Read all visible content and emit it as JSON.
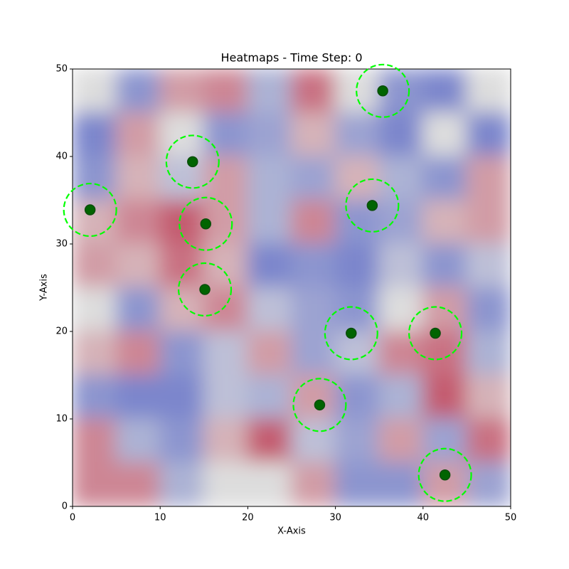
{
  "chart_data": {
    "type": "heatmap",
    "title": "Heatmaps - Time Step: 0",
    "x_label": "X-Axis",
    "y_label": "Y-Axis",
    "xlim": [
      0,
      50
    ],
    "ylim": [
      0,
      50
    ],
    "xticks": [
      0,
      10,
      20,
      30,
      40,
      50
    ],
    "yticks": [
      0,
      10,
      20,
      30,
      40,
      50
    ],
    "colormap": [
      "#3b4cc0",
      "#dddddd",
      "#b40426"
    ],
    "vlim": [
      -1,
      1
    ],
    "matrix": [
      [
        0,
        -0.5,
        0.3,
        0.4,
        -0.3,
        0.5,
        0,
        -0.5,
        -0.6,
        0
      ],
      [
        -0.6,
        0.3,
        0,
        -0.5,
        -0.4,
        0.2,
        -0.4,
        -0.6,
        0,
        -0.6
      ],
      [
        -0.5,
        0.2,
        -0.2,
        0.3,
        -0.3,
        -0.4,
        0.2,
        -0.3,
        -0.5,
        0.3
      ],
      [
        0.2,
        0.4,
        0.6,
        0.3,
        -0.3,
        0.4,
        -0.5,
        -0.4,
        0.2,
        0.3
      ],
      [
        0.3,
        0.2,
        0.5,
        0.2,
        -0.6,
        -0.5,
        -0.6,
        -0.2,
        -0.5,
        -0.2
      ],
      [
        0,
        -0.5,
        0.2,
        0.4,
        -0.2,
        -0.4,
        -0.5,
        0,
        0.3,
        -0.5
      ],
      [
        0.2,
        0.4,
        -0.5,
        -0.2,
        0.3,
        -0.4,
        -0.2,
        0.4,
        0.5,
        -0.3
      ],
      [
        -0.5,
        -0.6,
        -0.6,
        -0.2,
        -0.3,
        0.3,
        -0.5,
        -0.3,
        0.6,
        0.2
      ],
      [
        0.4,
        -0.3,
        -0.5,
        0.2,
        0.6,
        -0.2,
        -0.4,
        0.3,
        -0.4,
        0.5
      ],
      [
        0.4,
        0.4,
        -0.3,
        0,
        0,
        0.3,
        -0.5,
        -0.5,
        0.3,
        -0.4
      ]
    ],
    "points": {
      "color": "#006400",
      "ring_color": "#00ff00",
      "circle_radius": 3,
      "x": [
        2,
        13.7,
        15.2,
        15.1,
        35.4,
        34.2,
        31.8,
        41.4,
        28.2,
        42.5
      ],
      "y": [
        33.9,
        39.4,
        32.3,
        24.8,
        47.5,
        34.4,
        19.8,
        19.8,
        11.6,
        3.6
      ]
    }
  }
}
